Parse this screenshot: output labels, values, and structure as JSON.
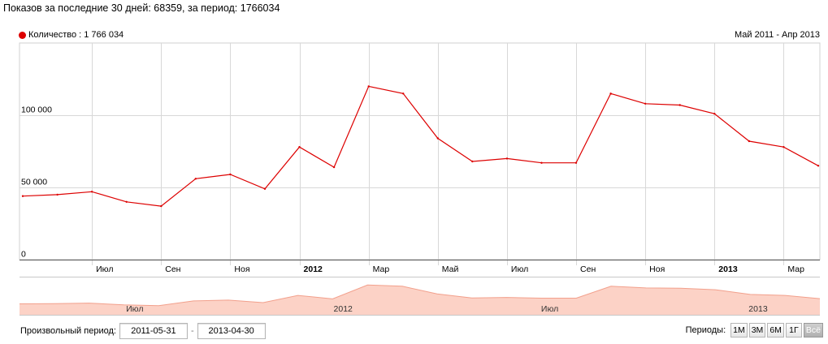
{
  "header": {
    "summary": "Показов за последние 30 дней: 68359, за период: 1766034"
  },
  "chart_data": {
    "type": "line",
    "legend": "Количество : 1 766 034",
    "period_title": "Май 2011 - Апр 2013",
    "series_color": "#dd0000",
    "ylim": [
      0,
      150000
    ],
    "yticks": [
      {
        "value": 0,
        "label": "0"
      },
      {
        "value": 50000,
        "label": "50 000"
      },
      {
        "value": 100000,
        "label": "100 000"
      }
    ],
    "x": [
      "2011-05",
      "2011-06",
      "2011-07",
      "2011-08",
      "2011-09",
      "2011-10",
      "2011-11",
      "2011-12",
      "2012-01",
      "2012-02",
      "2012-03",
      "2012-04",
      "2012-05",
      "2012-06",
      "2012-07",
      "2012-08",
      "2012-09",
      "2012-10",
      "2012-11",
      "2012-12",
      "2013-01",
      "2013-02",
      "2013-03",
      "2013-04"
    ],
    "values": [
      44000,
      45000,
      47000,
      40000,
      37000,
      56000,
      59000,
      49000,
      78000,
      64000,
      120000,
      115000,
      84000,
      68000,
      70000,
      67000,
      67000,
      115000,
      108000,
      107000,
      101000,
      82000,
      78000,
      65000
    ],
    "xticks": [
      {
        "x": "2011-07",
        "label": "Июл",
        "bold": false
      },
      {
        "x": "2011-09",
        "label": "Сен",
        "bold": false
      },
      {
        "x": "2011-11",
        "label": "Ноя",
        "bold": false
      },
      {
        "x": "2012-01",
        "label": "2012",
        "bold": true
      },
      {
        "x": "2012-03",
        "label": "Мар",
        "bold": false
      },
      {
        "x": "2012-05",
        "label": "Май",
        "bold": false
      },
      {
        "x": "2012-07",
        "label": "Июл",
        "bold": false
      },
      {
        "x": "2012-09",
        "label": "Сен",
        "bold": false
      },
      {
        "x": "2012-11",
        "label": "Ноя",
        "bold": false
      },
      {
        "x": "2013-01",
        "label": "2013",
        "bold": true
      },
      {
        "x": "2013-03",
        "label": "Мар",
        "bold": false
      }
    ],
    "navigator_labels": [
      {
        "x": "2011-07",
        "label": "Июл"
      },
      {
        "x": "2012-01",
        "label": "2012"
      },
      {
        "x": "2012-07",
        "label": "Июл"
      },
      {
        "x": "2013-01",
        "label": "2013"
      }
    ],
    "grid": true
  },
  "controls": {
    "custom_period_label": "Произвольный период:",
    "date_from": "2011-05-31",
    "date_separator": "-",
    "date_to": "2013-04-30",
    "periods_label": "Периоды:",
    "period_buttons": [
      "1М",
      "3М",
      "6М",
      "1Г",
      "Всё"
    ],
    "active_period": "Всё"
  }
}
